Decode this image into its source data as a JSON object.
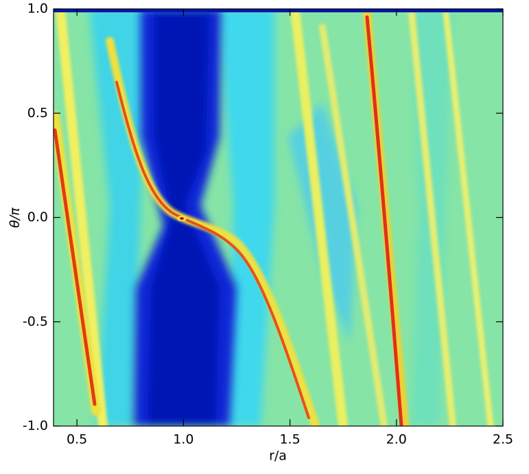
{
  "chart_data": {
    "type": "image",
    "xlabel": "r/a",
    "ylabel": "θ/π",
    "xlim": [
      0.39,
      2.5
    ],
    "ylim": [
      -1,
      1
    ],
    "xticks": [
      0.5,
      {
        "value": 1,
        "label": "1.0"
      },
      1.5,
      {
        "value": 2,
        "label": "2.0"
      },
      2.5
    ],
    "yticks": [
      {
        "value": -1,
        "label": "-1.0"
      },
      -0.5,
      {
        "value": 0,
        "label": "0.0"
      },
      0.5,
      {
        "value": 1,
        "label": "1.0"
      }
    ]
  }
}
